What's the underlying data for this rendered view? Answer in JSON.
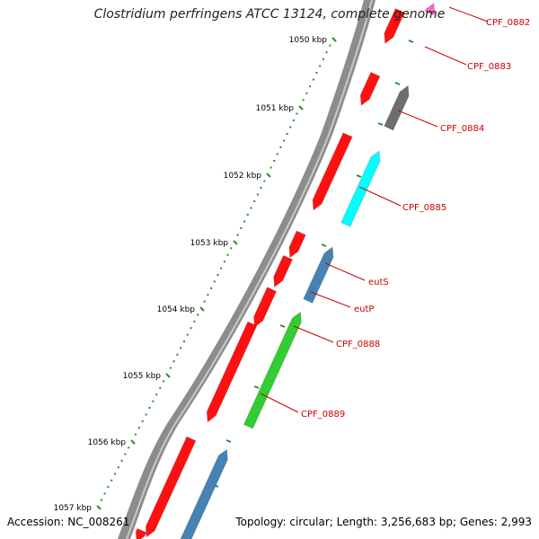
{
  "title": "Clostridium perfringens ATCC 13124, complete genome",
  "accession_text": "Accession: NC_008261",
  "summary_text": "Topology: circular; Length: 3,256,683 bp; Genes: 2,993",
  "colors": {
    "backbone": "#8c8c8c",
    "ruler_ticks": "#2e8b2e",
    "gene_red": "#ff1010",
    "gene_gray": "#6e6e6e",
    "gene_cyan": "#00ffff",
    "gene_blue": "#4682b4",
    "gene_green": "#32cd32",
    "gene_pink": "#ff66cc",
    "label_red": "#cc0000"
  },
  "kbp_labels": [
    "1050 kbp",
    "1051 kbp",
    "1052 kbp",
    "1053 kbp",
    "1054 kbp",
    "1055 kbp",
    "1056 kbp",
    "1057 kbp"
  ],
  "gene_labels": [
    "CPF_0882",
    "CPF_0883",
    "CPF_0884",
    "CPF_0885",
    "eutS",
    "eutP",
    "CPF_0888",
    "CPF_0889"
  ]
}
